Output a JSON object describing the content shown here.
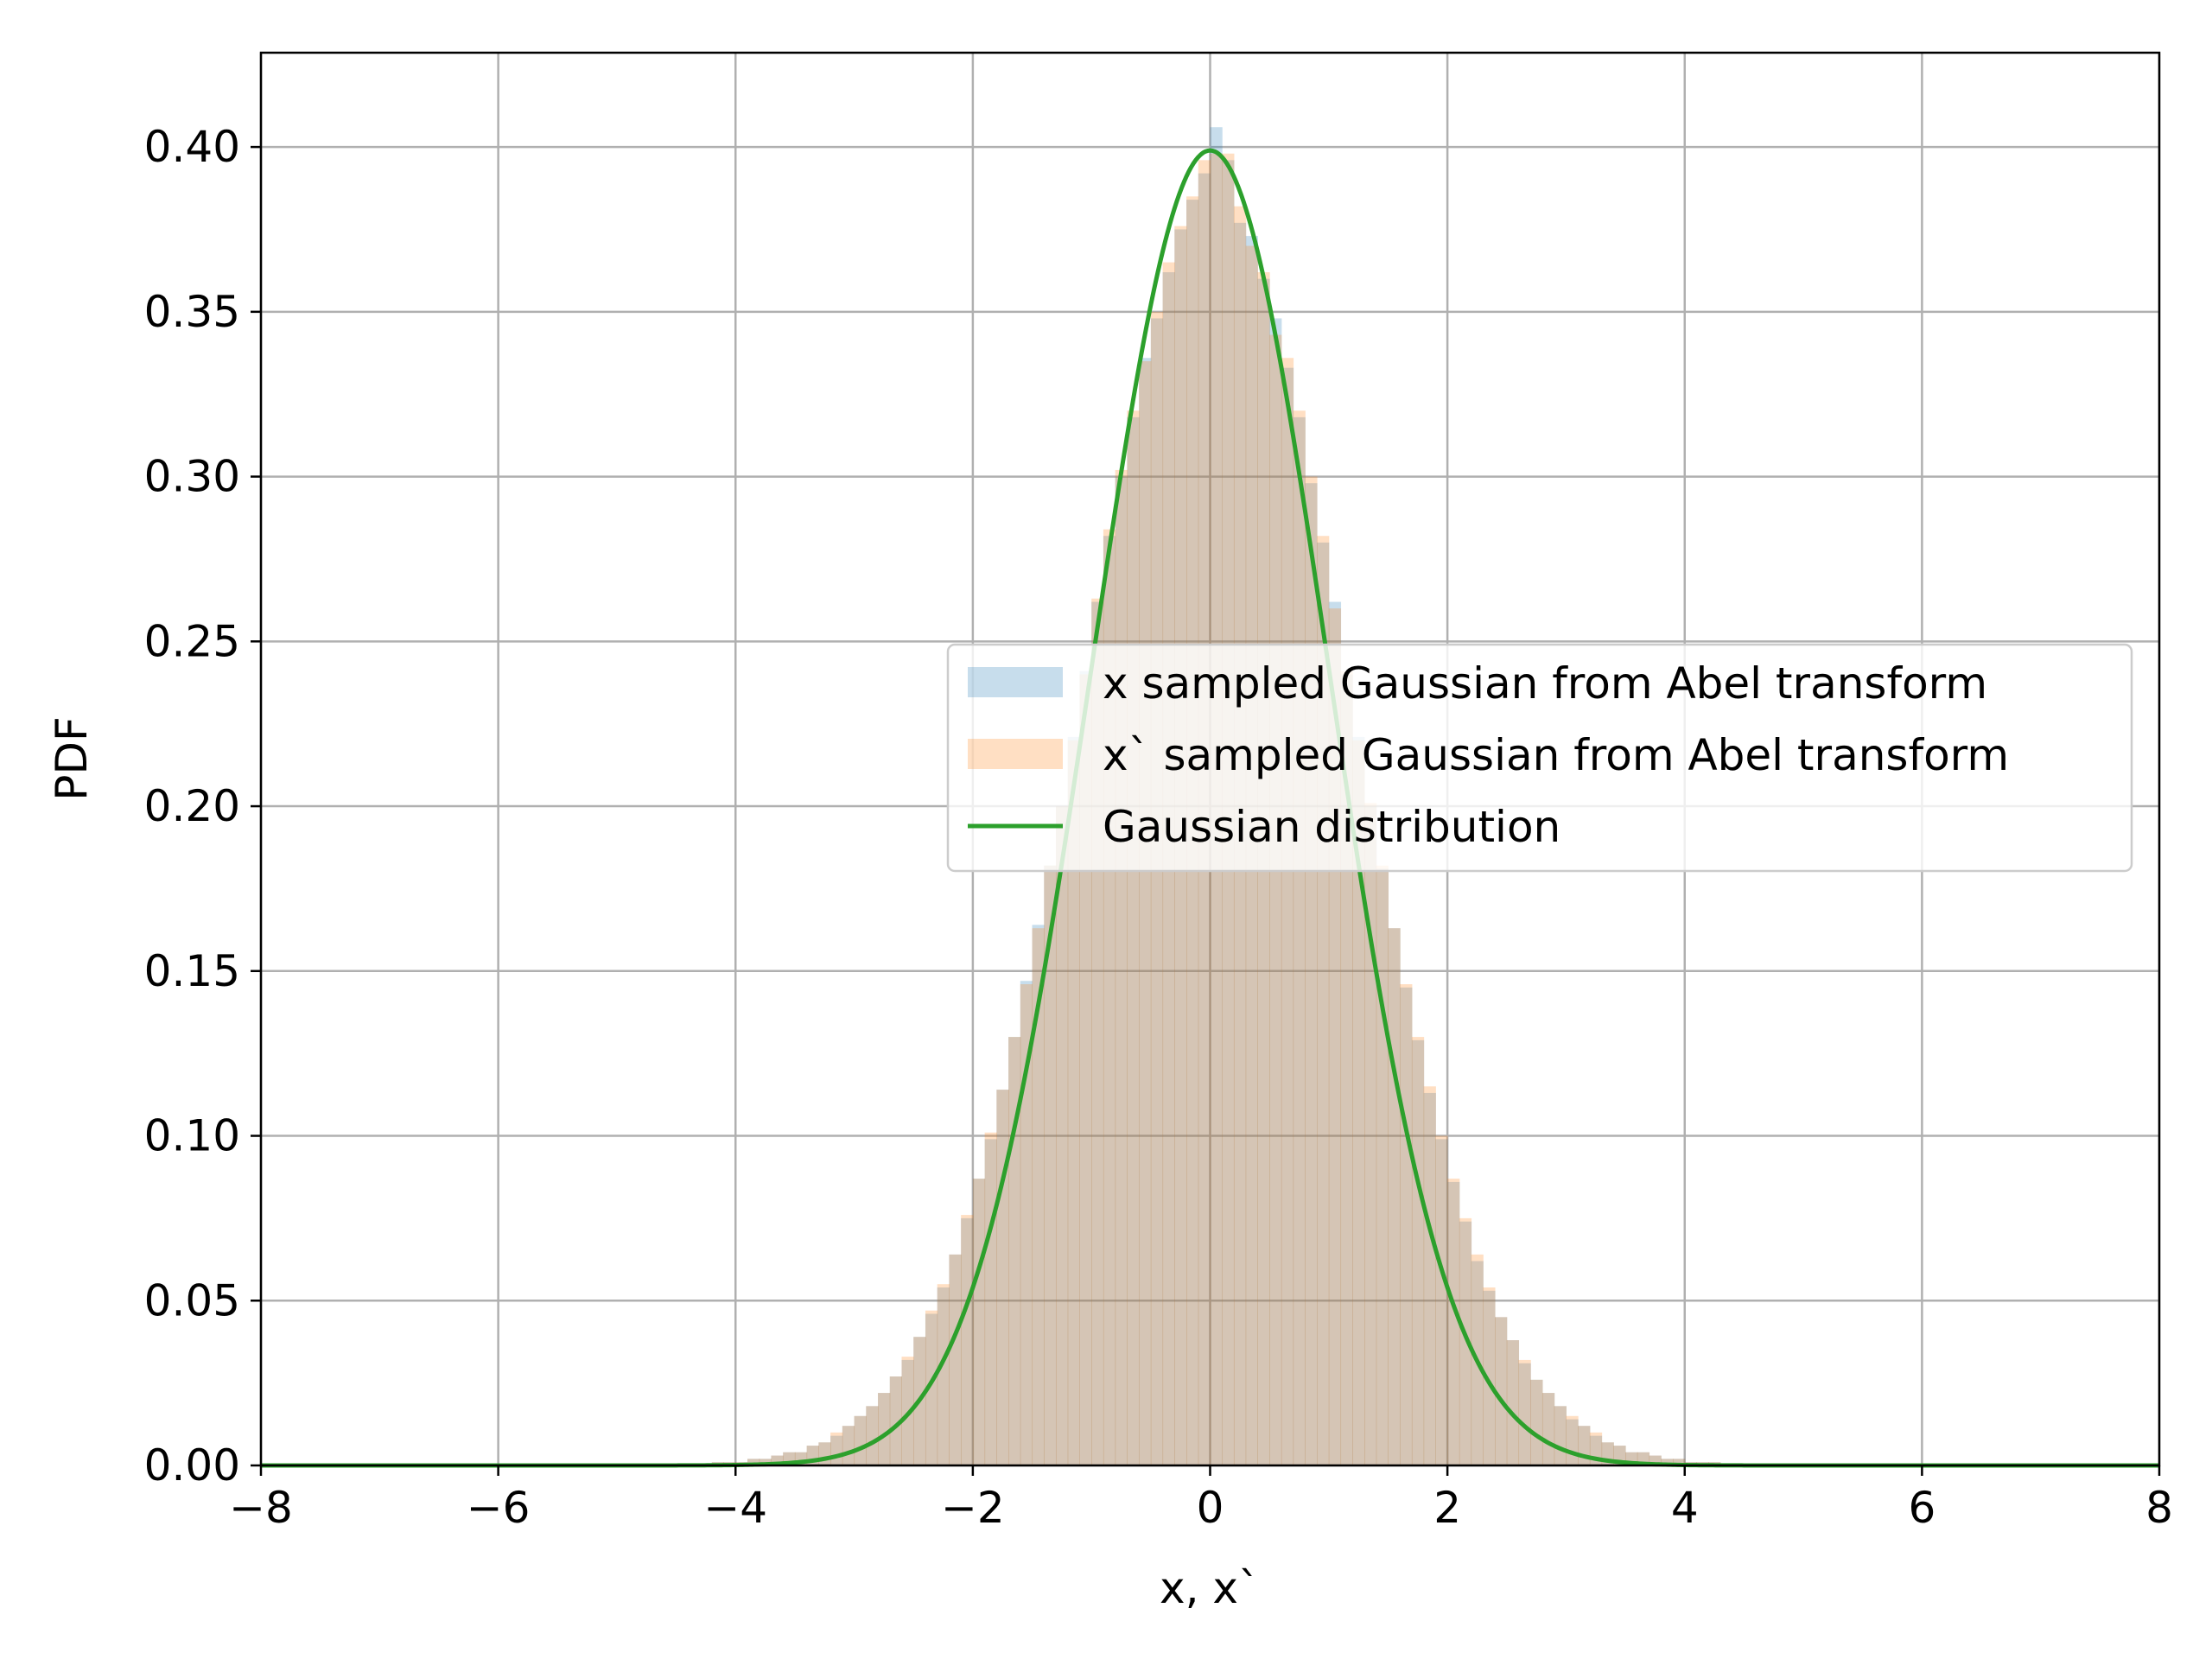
{
  "chart_data": {
    "type": "histogram",
    "title": "",
    "xlabel": "x, x`",
    "ylabel": "PDF",
    "xlim": [
      -8,
      8
    ],
    "ylim": [
      0,
      0.4286
    ],
    "xticks": [
      -8,
      -6,
      -4,
      -2,
      0,
      2,
      4,
      6,
      8
    ],
    "xtick_labels": [
      "−8",
      "−6",
      "−4",
      "−2",
      "0",
      "2",
      "4",
      "6",
      "8"
    ],
    "yticks": [
      0.0,
      0.05,
      0.1,
      0.15,
      0.2,
      0.25,
      0.3,
      0.35,
      0.4
    ],
    "ytick_labels": [
      "0.00",
      "0.05",
      "0.10",
      "0.15",
      "0.20",
      "0.25",
      "0.30",
      "0.35",
      "0.40"
    ],
    "grid": true,
    "legend_position": "center-right",
    "histogram_bins": {
      "start": -4.5,
      "width": 0.1,
      "x_heights": [
        0.0,
        0.0,
        0.0,
        0.001,
        0.001,
        0.001,
        0.002,
        0.002,
        0.003,
        0.004,
        0.004,
        0.006,
        0.007,
        0.009,
        0.012,
        0.015,
        0.018,
        0.022,
        0.027,
        0.032,
        0.039,
        0.046,
        0.054,
        0.064,
        0.075,
        0.087,
        0.099,
        0.114,
        0.13,
        0.147,
        0.164,
        0.182,
        0.2,
        0.221,
        0.241,
        0.262,
        0.282,
        0.3,
        0.318,
        0.336,
        0.348,
        0.362,
        0.375,
        0.384,
        0.392,
        0.406,
        0.396,
        0.377,
        0.373,
        0.36,
        0.348,
        0.333,
        0.318,
        0.298,
        0.28,
        0.262,
        0.24,
        0.221,
        0.2,
        0.181,
        0.163,
        0.145,
        0.129,
        0.113,
        0.099,
        0.086,
        0.074,
        0.062,
        0.053,
        0.045,
        0.038,
        0.031,
        0.026,
        0.022,
        0.018,
        0.014,
        0.012,
        0.009,
        0.007,
        0.006,
        0.004,
        0.004,
        0.003,
        0.002,
        0.002,
        0.001,
        0.001,
        0.001,
        0.0,
        0.0
      ],
      "xp_heights": [
        0.0,
        0.0,
        0.0,
        0.001,
        0.001,
        0.001,
        0.002,
        0.002,
        0.003,
        0.004,
        0.004,
        0.006,
        0.007,
        0.01,
        0.012,
        0.015,
        0.018,
        0.022,
        0.027,
        0.033,
        0.039,
        0.047,
        0.055,
        0.064,
        0.076,
        0.087,
        0.101,
        0.114,
        0.13,
        0.146,
        0.163,
        0.182,
        0.2,
        0.22,
        0.24,
        0.263,
        0.284,
        0.302,
        0.32,
        0.335,
        0.35,
        0.365,
        0.376,
        0.385,
        0.396,
        0.398,
        0.398,
        0.382,
        0.37,
        0.362,
        0.343,
        0.336,
        0.32,
        0.3,
        0.282,
        0.26,
        0.241,
        0.22,
        0.201,
        0.182,
        0.163,
        0.146,
        0.13,
        0.115,
        0.1,
        0.087,
        0.075,
        0.064,
        0.054,
        0.045,
        0.038,
        0.032,
        0.026,
        0.022,
        0.018,
        0.015,
        0.012,
        0.01,
        0.007,
        0.006,
        0.004,
        0.004,
        0.003,
        0.002,
        0.002,
        0.001,
        0.001,
        0.001,
        0.0,
        0.0
      ]
    },
    "curve": {
      "function": "normal_pdf",
      "mean": 0,
      "std": 1,
      "x_range": [
        -8,
        8
      ]
    },
    "series": [
      {
        "name": "x sampled Gaussian from Abel transform",
        "kind": "histogram",
        "color": "#1f77b4",
        "alpha": 0.25
      },
      {
        "name": "x` sampled Gaussian from Abel transform",
        "kind": "histogram",
        "color": "#ff7f0e",
        "alpha": 0.25
      },
      {
        "name": "Gaussian distribution",
        "kind": "line",
        "color": "#2ca02c"
      }
    ]
  }
}
